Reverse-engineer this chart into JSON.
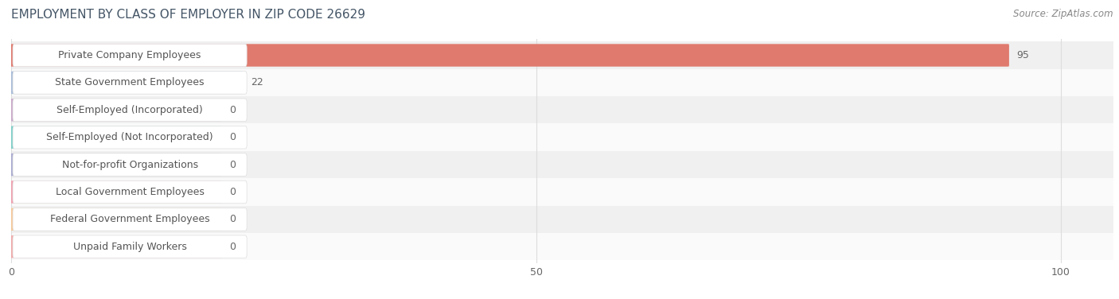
{
  "title": "EMPLOYMENT BY CLASS OF EMPLOYER IN ZIP CODE 26629",
  "source": "Source: ZipAtlas.com",
  "categories": [
    "Private Company Employees",
    "State Government Employees",
    "Self-Employed (Incorporated)",
    "Self-Employed (Not Incorporated)",
    "Not-for-profit Organizations",
    "Local Government Employees",
    "Federal Government Employees",
    "Unpaid Family Workers"
  ],
  "values": [
    95,
    22,
    0,
    0,
    0,
    0,
    0,
    0
  ],
  "bar_colors": [
    "#e07a6e",
    "#a8bcd8",
    "#c8a8c8",
    "#7ecec8",
    "#aaaad0",
    "#f0a0b0",
    "#f5c89a",
    "#f0aaaa"
  ],
  "label_bg_color": "#ffffff",
  "label_text_color": "#555555",
  "bar_label_inside_color": "#ffffff",
  "bar_label_outside_color": "#666666",
  "row_bg_even": "#f0f0f0",
  "row_bg_odd": "#fafafa",
  "xlim_max": 105,
  "xticks": [
    0,
    50,
    100
  ],
  "grid_color": "#dddddd",
  "title_fontsize": 11,
  "source_fontsize": 8.5,
  "label_fontsize": 9,
  "value_fontsize": 9,
  "background_color": "#ffffff",
  "zero_bar_width": 20
}
